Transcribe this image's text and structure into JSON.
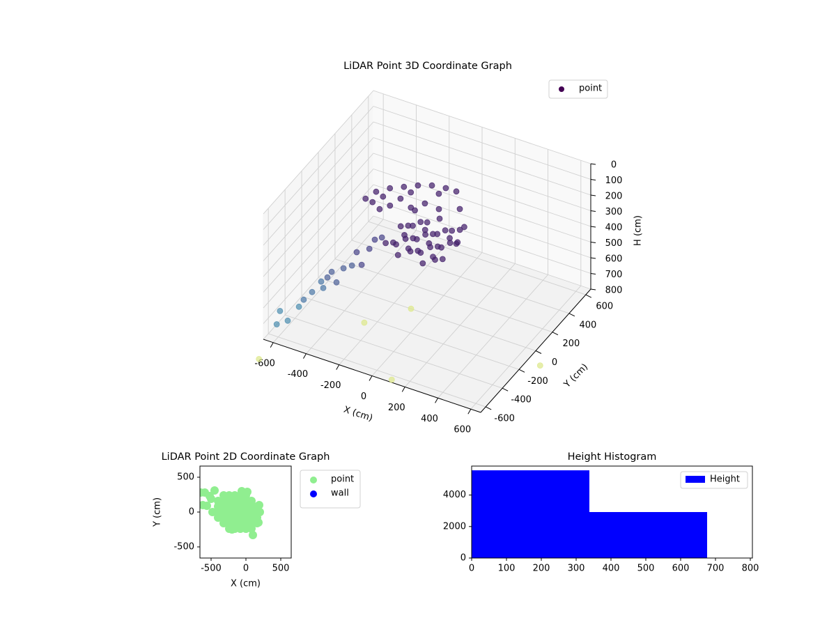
{
  "chart_data": [
    {
      "type": "scatter3d",
      "title": "LiDAR Point 3D Coordinate Graph",
      "xlabel": "X (cm)",
      "ylabel": "Y (cm)",
      "zlabel": "H (cm)",
      "xlim": [
        -660,
        660
      ],
      "ylim": [
        -660,
        660
      ],
      "zlim": [
        800,
        0
      ],
      "xticks": [
        -600,
        -400,
        -200,
        0,
        200,
        400,
        600
      ],
      "yticks": [
        -600,
        -400,
        -200,
        0,
        200,
        400,
        600
      ],
      "zticks": [
        0,
        100,
        200,
        300,
        400,
        500,
        600,
        700,
        800
      ],
      "grid": true,
      "legend": "upper right",
      "series": [
        {
          "name": "point",
          "color": "#440154",
          "colors": [
            "#44206b",
            "#44206b",
            "#44206b",
            "#44206b",
            "#44206b",
            "#44206b",
            "#44206b",
            "#44206b",
            "#44206b",
            "#44206b",
            "#44206b",
            "#44206b",
            "#44206b",
            "#44206b",
            "#44206b",
            "#44206b",
            "#44206b",
            "#44206b",
            "#44206b",
            "#44206b",
            "#44206b",
            "#44206b",
            "#44206b",
            "#44206b",
            "#44206b",
            "#44206b",
            "#44206b",
            "#44206b",
            "#44206b",
            "#44206b",
            "#44206b",
            "#44206b",
            "#44206b",
            "#44206b",
            "#44206b",
            "#44206b",
            "#44206b",
            "#44206b",
            "#44206b",
            "#44206b",
            "#44206b",
            "#44206b",
            "#44206b",
            "#44206b",
            "#44206b",
            "#44206b",
            "#44206b",
            "#44206b",
            "#44206b",
            "#44206b",
            "#44206b",
            "#44206b",
            "#44206b",
            "#44206b",
            "#44206b",
            "#44206b",
            "#44206b",
            "#44206b",
            "#4f8fb0",
            "#4f8fb0",
            "#4f8fb0",
            "#4f8fb0",
            "#4f7aa8",
            "#4f7aa8",
            "#4f7aa8",
            "#4f7aa8",
            "#4f6299",
            "#4f6299",
            "#4f6299",
            "#4f6299",
            "#4f6299",
            "#4b468a",
            "#4b468a",
            "#4b468a",
            "#4b468a",
            "#4b468a",
            "#dde88a",
            "#dde88a",
            "#dde88a",
            "#dde88a",
            "#dde88a"
          ],
          "x": [
            -150,
            -150,
            -150,
            -150,
            -150,
            -75,
            -75,
            -75,
            -75,
            -75,
            0,
            0,
            0,
            0,
            0,
            75,
            75,
            75,
            75,
            75,
            150,
            150,
            150,
            150,
            150,
            -112,
            -112,
            -112,
            -37,
            -37,
            -37,
            37,
            37,
            37,
            112,
            112,
            112,
            -500,
            -436,
            -352,
            -267,
            -182,
            -97,
            -13,
            51,
            123,
            174,
            203,
            -301,
            -174,
            -89,
            -237,
            -4,
            -364,
            -458,
            -225,
            -55,
            -394,
            -660,
            -640,
            -593,
            -525,
            -496,
            -445,
            -390,
            -377,
            -352,
            -326,
            -297,
            -254,
            -203,
            -174,
            -144,
            -97,
            -64,
            -21,
            -598,
            -258,
            -98,
            742,
            108
          ],
          "y": [
            -200,
            -110,
            -20,
            70,
            150,
            -200,
            -110,
            -20,
            70,
            150,
            -200,
            -110,
            -20,
            70,
            150,
            -200,
            -110,
            -20,
            70,
            150,
            -200,
            -110,
            -20,
            70,
            150,
            -150,
            -50,
            50,
            -150,
            -50,
            50,
            -150,
            -50,
            50,
            -150,
            -50,
            50,
            250,
            250,
            250,
            250,
            250,
            250,
            250,
            250,
            150,
            50,
            -50,
            150,
            150,
            150,
            150,
            150,
            150,
            250,
            250,
            250,
            250,
            -500,
            -500,
            -500,
            -500,
            -500,
            -500,
            -500,
            -500,
            -500,
            -500,
            -500,
            -500,
            -500,
            -500,
            -500,
            -500,
            -500,
            -500,
            -835,
            -243,
            1,
            -109,
            -637
          ],
          "h": [
            280,
            330,
            280,
            330,
            280,
            330,
            280,
            330,
            280,
            330,
            280,
            330,
            280,
            330,
            280,
            330,
            280,
            330,
            280,
            330,
            280,
            330,
            280,
            330,
            280,
            305,
            305,
            305,
            305,
            305,
            305,
            305,
            305,
            305,
            305,
            305,
            305,
            389,
            322,
            270,
            231,
            192,
            162,
            149,
            148,
            175,
            230,
            249,
            303,
            271,
            214,
            236,
            220,
            348,
            396,
            251,
            200,
            338,
            800,
            708,
            753,
            640,
            585,
            518,
            432,
            468,
            392,
            347,
            404,
            299,
            263,
            168,
            238,
            119,
            49,
            20,
            800,
            800,
            800,
            800,
            800
          ]
        }
      ]
    },
    {
      "type": "scatter",
      "title": "LiDAR Point 2D Coordinate Graph",
      "xlabel": "X (cm)",
      "ylabel": "Y (cm)",
      "xlim": [
        -660,
        650
      ],
      "ylim": [
        -660,
        660
      ],
      "xticks": [
        -500,
        0,
        500
      ],
      "yticks": [
        -500,
        0,
        500
      ],
      "legend": "outside right",
      "series": [
        {
          "name": "point",
          "color": "#90ee90",
          "x": [
            -320,
            -240,
            -160,
            -80,
            0,
            -400,
            -320,
            -240,
            -160,
            -80,
            0,
            80,
            -400,
            -320,
            -240,
            -160,
            -80,
            0,
            80,
            160,
            -400,
            -320,
            -240,
            -160,
            -80,
            0,
            80,
            160,
            -400,
            -320,
            -240,
            -160,
            -80,
            0,
            80,
            160,
            -320,
            -240,
            -160,
            -80,
            0,
            80,
            160,
            -240,
            -160,
            -80,
            0,
            80,
            -650,
            -620,
            -560,
            -590,
            -500,
            -450,
            -520,
            -480,
            100,
            180,
            200,
            190,
            -200,
            -60,
            20
          ],
          "y": [
            240,
            240,
            240,
            240,
            240,
            160,
            160,
            160,
            160,
            160,
            160,
            160,
            80,
            80,
            80,
            80,
            80,
            80,
            80,
            80,
            0,
            0,
            0,
            0,
            0,
            0,
            0,
            0,
            -80,
            -80,
            -80,
            -80,
            -80,
            -80,
            -80,
            -80,
            -160,
            -160,
            -160,
            -160,
            -160,
            -160,
            -160,
            -240,
            -240,
            -240,
            -240,
            -240,
            280,
            100,
            90,
            280,
            190,
            310,
            230,
            0,
            -330,
            -150,
            0,
            100,
            -250,
            300,
            290
          ]
        },
        {
          "name": "wall",
          "color": "#0000ff",
          "x": [],
          "y": []
        }
      ]
    },
    {
      "type": "histogram",
      "title": "Height Histogram",
      "xlim": [
        0,
        806
      ],
      "ylim": [
        0,
        5840
      ],
      "xticks": [
        0,
        100,
        200,
        300,
        400,
        500,
        600,
        700,
        800
      ],
      "yticks": [
        0,
        2000,
        4000
      ],
      "legend": "upper right",
      "series": [
        {
          "name": "Height",
          "color": "#0000ff",
          "bins": [
            0,
            338,
            676
          ],
          "counts": [
            5570,
            2920
          ]
        }
      ]
    }
  ]
}
